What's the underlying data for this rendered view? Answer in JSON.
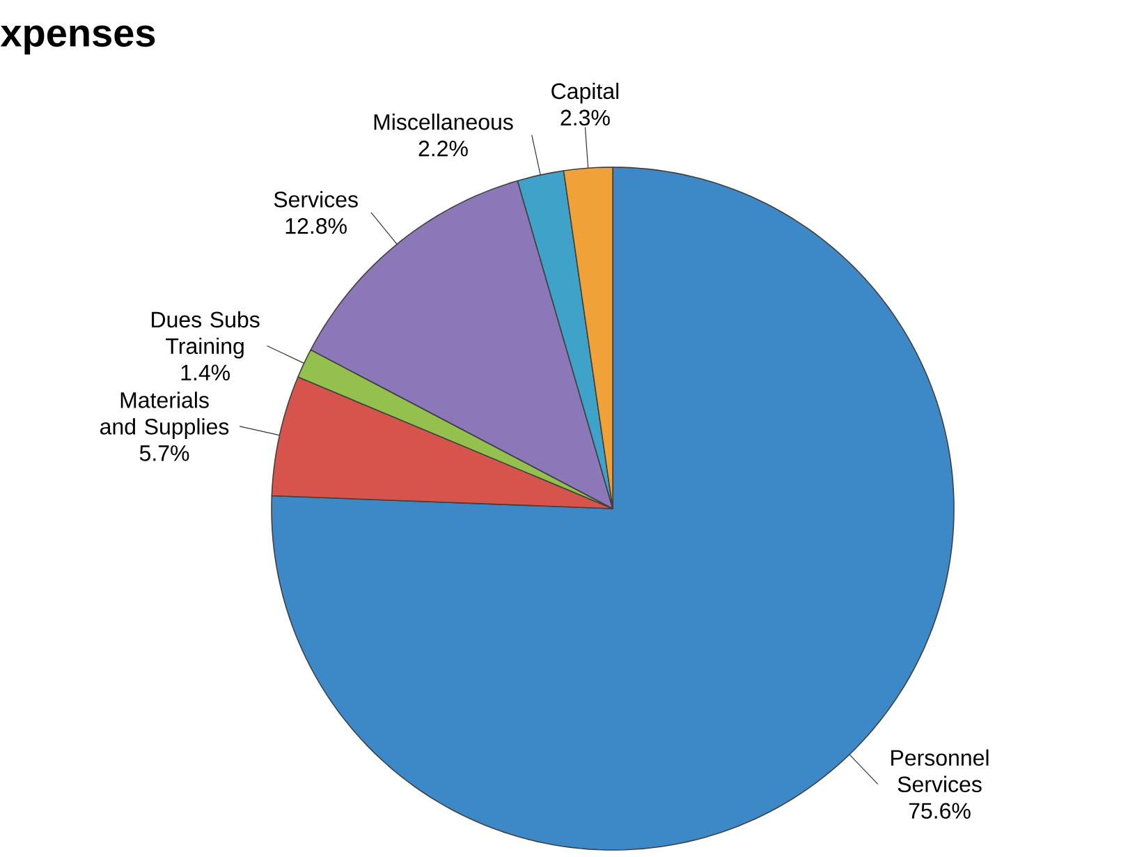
{
  "chart_data": {
    "type": "pie",
    "title": "xpenses",
    "categories": [
      "Personnel Services",
      "Materials and Supplies",
      "Dues Subs Training",
      "Services",
      "Miscellaneous",
      "Capital"
    ],
    "values": [
      75.6,
      5.7,
      1.4,
      12.8,
      2.2,
      2.3
    ],
    "value_labels": [
      "75.6%",
      "5.7%",
      "1.4%",
      "12.8%",
      "2.2%",
      "2.3%"
    ],
    "colors": [
      "#3d88c6",
      "#d6544c",
      "#94c04e",
      "#8c78b8",
      "#3fa2c9",
      "#f0a238"
    ]
  }
}
